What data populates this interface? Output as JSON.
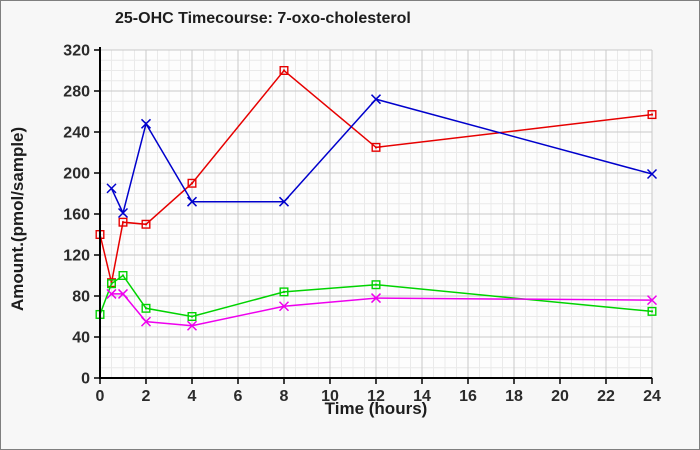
{
  "window": {
    "background": "#f7f7f7",
    "border_color": "#7f7f7f"
  },
  "chart_data": {
    "type": "line",
    "title": "25-OHC Timecourse: 7-oxo-cholesterol",
    "xlabel": "Time (hours)",
    "ylabel": "Amount.(pmol/sample)",
    "x": [
      0,
      0.5,
      1,
      2,
      4,
      8,
      12,
      24
    ],
    "series": [
      {
        "name": "red-squares",
        "color": "#e60000",
        "marker": "square",
        "values": [
          140,
          93,
          152,
          150,
          190,
          300,
          225,
          257
        ]
      },
      {
        "name": "blue-x",
        "color": "#0000cc",
        "marker": "x",
        "values": [
          null,
          185,
          161,
          248,
          172,
          172,
          272,
          199
        ]
      },
      {
        "name": "green-squares",
        "color": "#00d300",
        "marker": "square",
        "values": [
          62,
          92,
          100,
          68,
          60,
          84,
          91,
          65
        ]
      },
      {
        "name": "magenta-x",
        "color": "#ee00ee",
        "marker": "x",
        "values": [
          null,
          82,
          82,
          55,
          51,
          70,
          78,
          76
        ]
      }
    ],
    "xlim": [
      0,
      24
    ],
    "ylim": [
      0,
      320
    ],
    "xticks": [
      0,
      2,
      4,
      6,
      8,
      10,
      12,
      14,
      16,
      18,
      20,
      22,
      24
    ],
    "yticks": [
      0,
      40,
      80,
      120,
      160,
      200,
      240,
      280,
      320
    ],
    "minor_x_step": 0.5,
    "minor_y_step": 10,
    "grid": true,
    "legend": "none",
    "colors": {
      "plot_background": "#fdfdfd",
      "minor_grid": "#eaeaea",
      "major_grid": "#c9c9c9",
      "axis": "#000000",
      "tick_label": "#2b2b2b"
    }
  }
}
